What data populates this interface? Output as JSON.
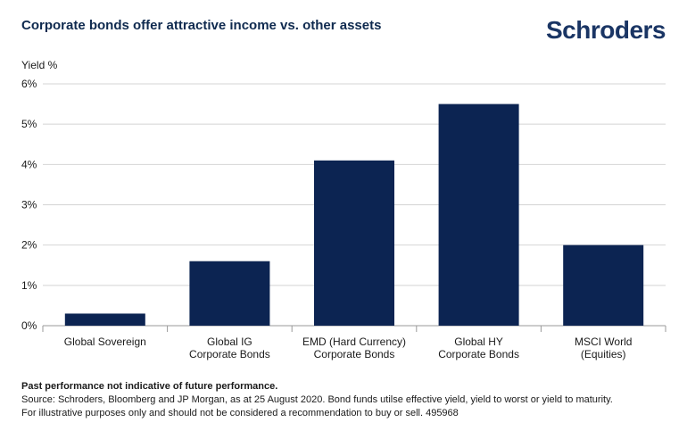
{
  "header": {
    "title": "Corporate bonds offer attractive income vs. other assets",
    "logo": "Schroders"
  },
  "chart_data": {
    "type": "bar",
    "title": "Corporate bonds offer attractive income vs. other assets",
    "ylabel": "Yield %",
    "xlabel": "",
    "ylim": [
      0,
      6
    ],
    "yticks": [
      "0%",
      "1%",
      "2%",
      "3%",
      "4%",
      "5%",
      "6%"
    ],
    "grid": true,
    "categories": [
      [
        "Global Sovereign"
      ],
      [
        "Global IG",
        "Corporate Bonds"
      ],
      [
        "EMD (Hard Currency)",
        "Corporate Bonds"
      ],
      [
        "Global HY",
        "Corporate Bonds"
      ],
      [
        "MSCI World",
        "(Equities)"
      ]
    ],
    "values": [
      0.3,
      1.6,
      4.1,
      5.5,
      2.0
    ],
    "bar_color": "#0c2452",
    "grid_color": "#d4d4d4",
    "axis_color": "#999999"
  },
  "footnotes": {
    "line1": "Past performance not indicative of future performance.",
    "line2": "Source: Schroders, Bloomberg and JP Morgan, as at 25 August 2020. Bond funds utilse effective yield, yield to worst or yield to maturity.",
    "line3": "For illustrative purposes only and should not be considered a recommendation to buy or sell. 495968"
  }
}
